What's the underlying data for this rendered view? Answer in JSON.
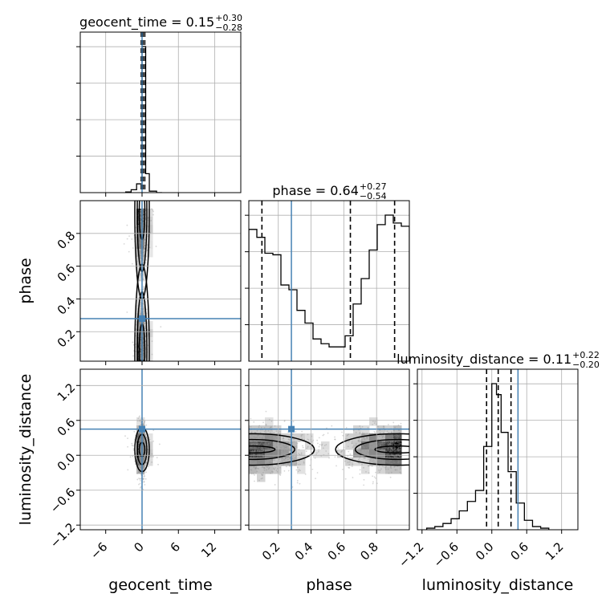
{
  "chart_data": {
    "type": "corner",
    "parameters": [
      "geocent_time",
      "phase",
      "luminosity_distance"
    ],
    "grid": true,
    "panel_titles": [
      {
        "param": "geocent_time",
        "median": "0.15",
        "plus": "+0.30",
        "minus": "−0.28"
      },
      {
        "param": "phase",
        "median": "0.64",
        "plus": "+0.27",
        "minus": "−0.54"
      },
      {
        "param": "luminosity_distance",
        "median": "0.11",
        "plus": "+0.22",
        "minus": "−0.20"
      }
    ],
    "truths": {
      "geocent_time": 0.0,
      "phase": 0.28,
      "luminosity_distance": 0.45
    },
    "ranges": {
      "geocent_time": [
        -10.2,
        16.3
      ],
      "phase": [
        0.02,
        1.0
      ],
      "luminosity_distance": [
        -1.28,
        1.48
      ]
    },
    "ticks": {
      "geocent_time": {
        "values": [
          -6,
          0,
          6,
          12
        ],
        "labels": [
          "−6",
          "0",
          "6",
          "12"
        ]
      },
      "phase": {
        "values": [
          0.2,
          0.4,
          0.6,
          0.8
        ],
        "labels": [
          "0.2",
          "0.4",
          "0.6",
          "0.8"
        ]
      },
      "luminosity_distance": {
        "values": [
          -1.2,
          -0.6,
          0.0,
          0.6,
          1.2
        ],
        "labels": [
          "−1.2",
          "−0.6",
          "0.0",
          "0.6",
          "1.2"
        ]
      }
    },
    "quantile_lines": {
      "geocent_time": [
        -0.13,
        0.15,
        0.45
      ],
      "phase": [
        0.1,
        0.64,
        0.91
      ],
      "luminosity_distance": [
        -0.09,
        0.11,
        0.33
      ]
    },
    "histograms": {
      "geocent_time": {
        "edges": [
          -2.7,
          -1.8,
          -0.9,
          0.0,
          0.6,
          1.2,
          2.4,
          3.3
        ],
        "density": [
          0.005,
          0.02,
          0.06,
          1.0,
          0.13,
          0.01,
          0.0
        ]
      },
      "phase": {
        "edges": [
          0.02,
          0.069,
          0.118,
          0.167,
          0.216,
          0.265,
          0.314,
          0.363,
          0.412,
          0.461,
          0.51,
          0.559,
          0.608,
          0.657,
          0.706,
          0.755,
          0.804,
          0.853,
          0.902,
          0.951,
          1.0
        ],
        "density": [
          0.83,
          0.78,
          0.68,
          0.67,
          0.48,
          0.45,
          0.32,
          0.24,
          0.14,
          0.11,
          0.09,
          0.09,
          0.16,
          0.36,
          0.52,
          0.7,
          0.86,
          0.92,
          0.87,
          0.85
        ]
      },
      "luminosity_distance": {
        "edges": [
          -1.12,
          -0.98,
          -0.84,
          -0.7,
          -0.56,
          -0.42,
          -0.28,
          -0.14,
          0.0,
          0.08,
          0.16,
          0.28,
          0.42,
          0.56,
          0.7,
          0.84,
          0.98
        ],
        "density": [
          0.01,
          0.02,
          0.04,
          0.07,
          0.12,
          0.18,
          0.25,
          0.53,
          0.93,
          0.86,
          0.62,
          0.37,
          0.17,
          0.06,
          0.02,
          0.01
        ]
      }
    },
    "density_2d": {
      "phase_vs_geocent_time": "bimodal in phase near 0.0 and 0.95, concentrated at geocent_time 0",
      "luminosity_distance_vs_geocent_time": "centered at (0, 0.1)",
      "luminosity_distance_vs_phase": "bimodal in phase near 0.05 and 0.92, luminosity_distance near 0.1"
    }
  },
  "labels": {
    "x_geocent_time": "geocent_time",
    "x_phase": "phase",
    "x_luminosity_distance": "luminosity_distance",
    "y_phase": "phase",
    "y_luminosity_distance": "luminosity_distance"
  },
  "colors": {
    "truth": "#4682b4",
    "hist": "#000000",
    "grid": "#b0b0b0",
    "points": "#8c8c8c"
  }
}
